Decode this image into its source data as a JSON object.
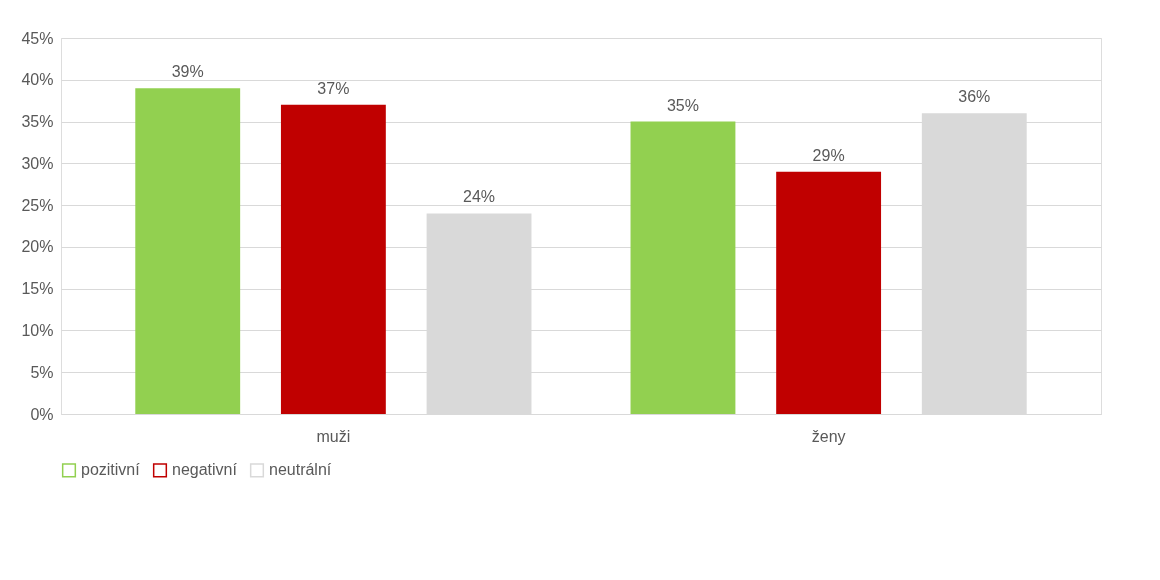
{
  "chart_data": {
    "type": "bar",
    "categories": [
      "muži",
      "ženy"
    ],
    "series": [
      {
        "name": "pozitivní",
        "color": "#92d050",
        "values": [
          39,
          35
        ]
      },
      {
        "name": "negativní",
        "color": "#c00000",
        "values": [
          37,
          29
        ]
      },
      {
        "name": "neutrální",
        "color": "#d9d9d9",
        "values": [
          24,
          36
        ]
      }
    ],
    "ylim": [
      0,
      45
    ],
    "yticks": [
      {
        "value": 0,
        "label": "0%"
      },
      {
        "value": 5,
        "label": "5%"
      },
      {
        "value": 10,
        "label": "10%"
      },
      {
        "value": 15,
        "label": "15%"
      },
      {
        "value": 20,
        "label": "20%"
      },
      {
        "value": 25,
        "label": "25%"
      },
      {
        "value": 30,
        "label": "30%"
      },
      {
        "value": 35,
        "label": "35%"
      },
      {
        "value": 40,
        "label": "40%"
      },
      {
        "value": 45,
        "label": "45%"
      }
    ],
    "value_labels": [
      [
        "39%",
        "35%"
      ],
      [
        "37%",
        "29%"
      ],
      [
        "24%",
        "36%"
      ]
    ],
    "grid": "y",
    "legend": "bottom"
  }
}
